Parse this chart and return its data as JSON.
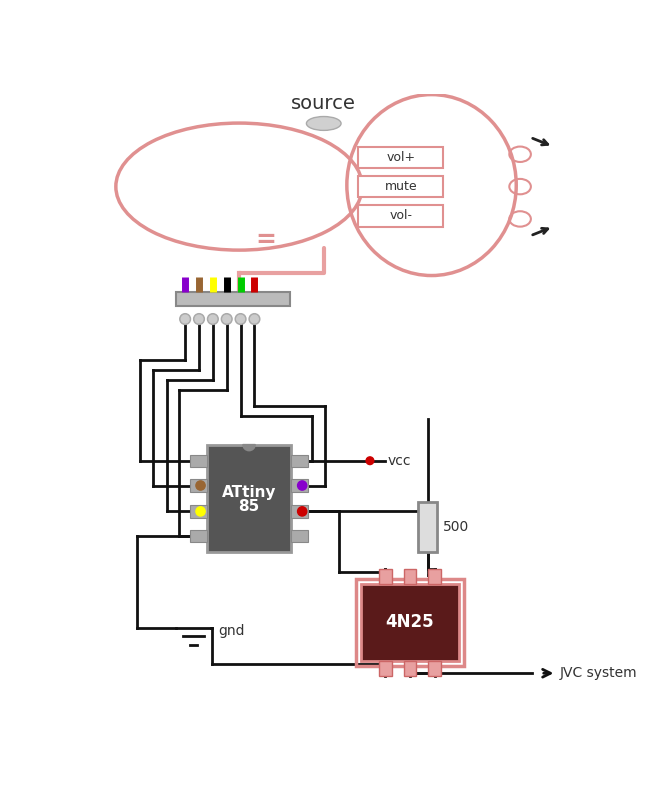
{
  "bg_color": "#ffffff",
  "remote_color": "#e09090",
  "source_label": "source",
  "button_labels": [
    "vol+",
    "mute",
    "vol-"
  ],
  "connector_wire_colors": [
    "#8800cc",
    "#996633",
    "#ffff00",
    "#000000",
    "#00cc00",
    "#cc0000"
  ],
  "attiny_label_line1": "ATtiny",
  "attiny_label_line2": "85",
  "attiny_body_color": "#555555",
  "opto_label": "4N25",
  "opto_body_color": "#5a1a1a",
  "opto_border_color": "#dd8888",
  "resistor_label": "500",
  "gnd_label": "gnd",
  "vcc_label": "vcc",
  "jvc_label": "JVC system",
  "wire_color": "#111111",
  "vcc_dot_color": "#cc0000",
  "chip_left_pin_colors": [
    "#ffffff",
    "#996633",
    "#ffff00",
    "#ffffff"
  ],
  "chip_right_pin_colors": [
    "#ffffff",
    "#8800cc",
    "#cc0000",
    "#ffffff"
  ]
}
